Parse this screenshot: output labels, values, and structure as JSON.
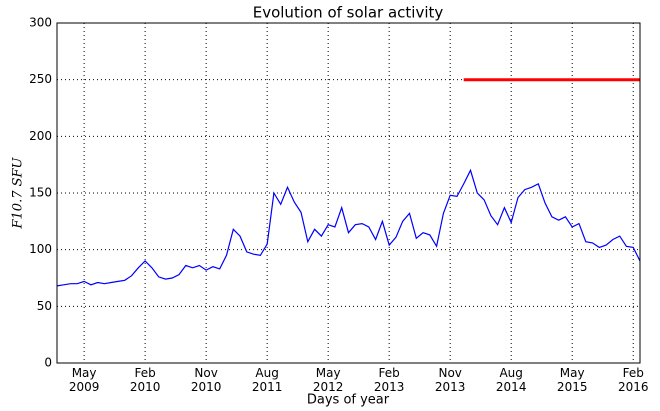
{
  "chart_data": {
    "type": "line",
    "title": "Evolution of solar activity",
    "x_label": "Days of year",
    "y_label": "F10.7 SFU",
    "xlim": [
      "2009-01",
      "2016-03"
    ],
    "ylim": [
      0,
      300
    ],
    "yticks": [
      0,
      50,
      100,
      150,
      200,
      250,
      300
    ],
    "xticks": [
      {
        "value": "2009-05",
        "label": "May\n2009"
      },
      {
        "value": "2010-02",
        "label": "Feb\n2010"
      },
      {
        "value": "2010-11",
        "label": "Nov\n2010"
      },
      {
        "value": "2011-08",
        "label": "Aug\n2011"
      },
      {
        "value": "2012-05",
        "label": "May\n2012"
      },
      {
        "value": "2013-02",
        "label": "Feb\n2013"
      },
      {
        "value": "2013-11",
        "label": "Nov\n2013"
      },
      {
        "value": "2014-08",
        "label": "Aug\n2014"
      },
      {
        "value": "2015-05",
        "label": "May\n2015"
      },
      {
        "value": "2016-02",
        "label": "Feb\n2016"
      }
    ],
    "grid": true,
    "series": [
      {
        "color": "#0000ff",
        "width": 1.2,
        "x": [
          "2009-01",
          "2009-02",
          "2009-03",
          "2009-04",
          "2009-05",
          "2009-06",
          "2009-07",
          "2009-08",
          "2009-09",
          "2009-10",
          "2009-11",
          "2009-12",
          "2010-01",
          "2010-02",
          "2010-03",
          "2010-04",
          "2010-05",
          "2010-06",
          "2010-07",
          "2010-08",
          "2010-09",
          "2010-10",
          "2010-11",
          "2010-12",
          "2011-01",
          "2011-02",
          "2011-03",
          "2011-04",
          "2011-05",
          "2011-06",
          "2011-07",
          "2011-08",
          "2011-09",
          "2011-10",
          "2011-11",
          "2011-12",
          "2012-01",
          "2012-02",
          "2012-03",
          "2012-04",
          "2012-05",
          "2012-06",
          "2012-07",
          "2012-08",
          "2012-09",
          "2012-10",
          "2012-11",
          "2012-12",
          "2013-01",
          "2013-02",
          "2013-03",
          "2013-04",
          "2013-05",
          "2013-06",
          "2013-07",
          "2013-08",
          "2013-09",
          "2013-10",
          "2013-11",
          "2013-12",
          "2014-01",
          "2014-02",
          "2014-03",
          "2014-04",
          "2014-05",
          "2014-06",
          "2014-07",
          "2014-08",
          "2014-09",
          "2014-10",
          "2014-11",
          "2014-12",
          "2015-01",
          "2015-02",
          "2015-03",
          "2015-04",
          "2015-05",
          "2015-06",
          "2015-07",
          "2015-08",
          "2015-09",
          "2015-10",
          "2015-11",
          "2015-12",
          "2016-01",
          "2016-02",
          "2016-03"
        ],
        "values": [
          68,
          69,
          70,
          70,
          72,
          69,
          71,
          70,
          71,
          72,
          73,
          77,
          84,
          90,
          84,
          76,
          74,
          75,
          78,
          86,
          84,
          86,
          82,
          85,
          83,
          95,
          118,
          112,
          98,
          96,
          95,
          105,
          150,
          140,
          155,
          142,
          133,
          107,
          118,
          112,
          122,
          120,
          137,
          115,
          122,
          123,
          120,
          109,
          125,
          104,
          111,
          125,
          132,
          110,
          115,
          113,
          103,
          132,
          148,
          147,
          158,
          170,
          150,
          144,
          130,
          122,
          137,
          124,
          146,
          153,
          155,
          158,
          141,
          129,
          126,
          129,
          120,
          123,
          107,
          106,
          102,
          104,
          109,
          112,
          103,
          102,
          90
        ]
      },
      {
        "color": "#ff0000",
        "width": 3,
        "x": [
          "2014-01",
          "2016-03"
        ],
        "values": [
          250,
          250
        ]
      }
    ]
  }
}
